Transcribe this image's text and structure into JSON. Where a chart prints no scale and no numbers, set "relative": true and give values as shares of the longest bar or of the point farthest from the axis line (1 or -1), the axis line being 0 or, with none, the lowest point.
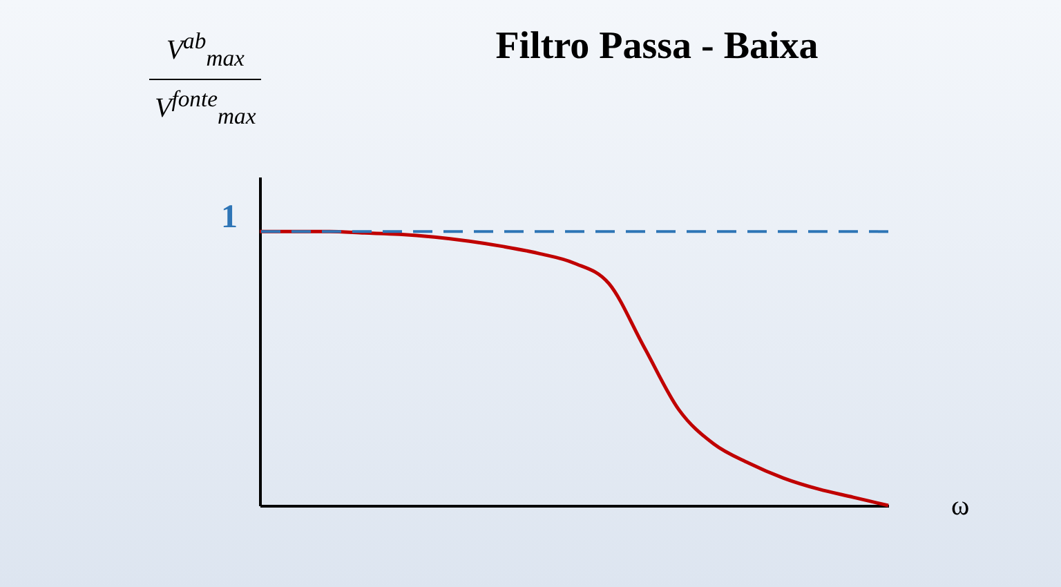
{
  "chart_data": {
    "type": "line",
    "title": "Filtro Passa - Baixa",
    "xlabel": "ω",
    "ylabel": "V$^{ab}$$_{max}$ V$^{fonte}$$_{max}$",
    "relative": true,
    "categories": [
      null,
      null,
      null,
      null,
      null,
      null,
      null,
      null,
      null,
      null,
      null,
      null,
      null,
      null,
      null,
      null,
      null,
      null,
      null
    ],
    "series": [
      {
        "color": "#c00000",
        "values": [
          1.0,
          1.0,
          1.0,
          0.995,
          0.99,
          0.98,
          0.965,
          0.945,
          0.92,
          0.885,
          0.81,
          0.58,
          0.35,
          0.225,
          0.155,
          0.1,
          0.06,
          0.03,
          0.0
        ]
      }
    ],
    "ref_lines": [
      {
        "axis": "y",
        "value": 1,
        "label": "1",
        "color": "#2e75b6",
        "line_style": "dashed"
      }
    ],
    "grid": false,
    "marker": "none",
    "line_style": "solid"
  }
}
